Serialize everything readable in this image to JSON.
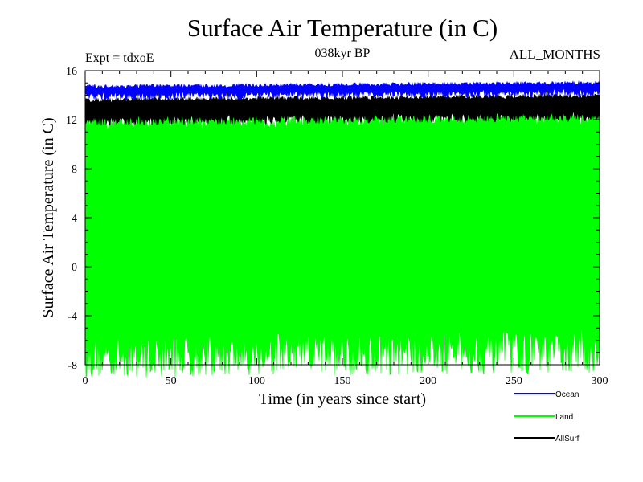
{
  "chart_data": {
    "type": "line",
    "title": "Surface Air Temperature (in C)",
    "subtitle_left": "Expt = tdxoE",
    "subtitle_center": "038kyr BP",
    "subtitle_right": "ALL_MONTHS",
    "xlabel": "Time (in years since start)",
    "ylabel": "Surface Air Temperature (in C)",
    "xlim": [
      0,
      300
    ],
    "ylim": [
      -8,
      16
    ],
    "xticks": [
      0,
      50,
      100,
      150,
      200,
      250,
      300
    ],
    "yticks": [
      -8,
      -4,
      0,
      4,
      8,
      12,
      16
    ],
    "grid": false,
    "legend_position": "bottom-right",
    "series": [
      {
        "name": "Ocean",
        "color": "#0000ff",
        "mean_upper": 14.7,
        "mean_lower": 13.9,
        "trend_end": 0.3
      },
      {
        "name": "Land",
        "color": "#00ff00",
        "mean_upper": 12.0,
        "mean_lower": -7.3,
        "trend_end": 0.4
      },
      {
        "name": "AllSurf",
        "color": "#000000",
        "mean_upper": 13.6,
        "mean_lower": 11.9,
        "trend_end": 0.35
      }
    ]
  }
}
